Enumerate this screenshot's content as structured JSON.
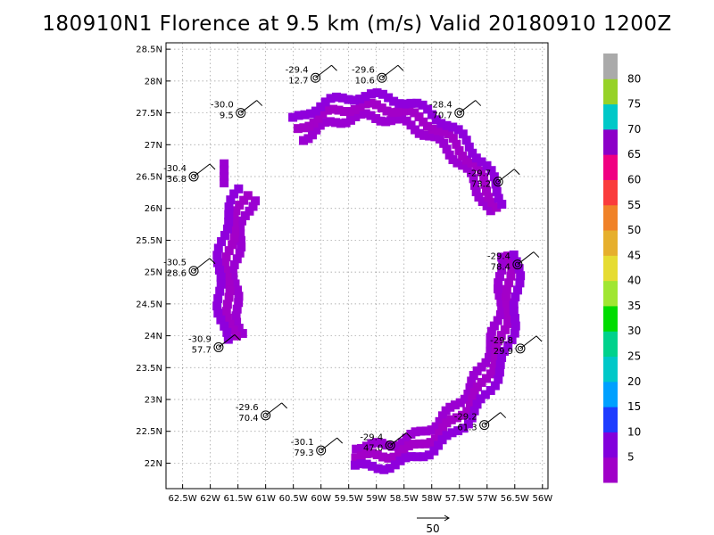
{
  "chart_data": {
    "type": "scatter",
    "title": "180910N1 Florence at 9.5 km (m/s) Valid 20180910 1200Z",
    "x_ticks": [
      "62.5W",
      "62W",
      "61.5W",
      "61W",
      "60.5W",
      "60W",
      "59.5W",
      "59W",
      "58.5W",
      "58W",
      "57.5W",
      "57W",
      "56.5W",
      "56W"
    ],
    "y_ticks": [
      "22N",
      "22.5N",
      "23N",
      "23.5N",
      "24N",
      "24.5N",
      "25N",
      "25.5N",
      "26N",
      "26.5N",
      "27N",
      "27.5N",
      "28N",
      "28.5N"
    ],
    "xlim": [
      -62.8,
      -55.9
    ],
    "ylim": [
      21.6,
      28.6
    ],
    "grid": true,
    "colorbar": {
      "labels": [
        "5",
        "10",
        "15",
        "20",
        "25",
        "30",
        "35",
        "40",
        "45",
        "50",
        "55",
        "60",
        "65",
        "70",
        "75",
        "80"
      ],
      "colors": [
        "#a000c8",
        "#8200dc",
        "#1e3cff",
        "#00a0ff",
        "#00c8c8",
        "#00d28c",
        "#00dc00",
        "#a0e632",
        "#e6dc32",
        "#e6af2d",
        "#f08228",
        "#fa3c3c",
        "#f00082",
        "#8c00c8",
        "#00c8c8",
        "#96d228",
        "#aaaaaa"
      ]
    },
    "dropsondes": [
      {
        "lon": -60.1,
        "lat": 28.05,
        "t": "-29.4",
        "w": "12.7"
      },
      {
        "lon": -58.9,
        "lat": 28.05,
        "t": "-29.6",
        "w": "10.6"
      },
      {
        "lon": -61.45,
        "lat": 27.5,
        "t": "-30.0",
        "w": "9.5"
      },
      {
        "lon": -57.5,
        "lat": 27.5,
        "t": "-28.4",
        "w": "70.7"
      },
      {
        "lon": -62.3,
        "lat": 26.5,
        "t": "-30.4",
        "w": "36.8"
      },
      {
        "lon": -56.8,
        "lat": 26.42,
        "t": "-29.7",
        "w": "73.2"
      },
      {
        "lon": -62.3,
        "lat": 25.02,
        "t": "-30.5",
        "w": "28.6"
      },
      {
        "lon": -56.45,
        "lat": 25.12,
        "t": "-29.4",
        "w": "78.4"
      },
      {
        "lon": -61.85,
        "lat": 23.82,
        "t": "-30.9",
        "w": "57.7"
      },
      {
        "lon": -56.4,
        "lat": 23.8,
        "t": "-29.8",
        "w": "29.9"
      },
      {
        "lon": -61.0,
        "lat": 22.75,
        "t": "-29.6",
        "w": "70.4"
      },
      {
        "lon": -57.05,
        "lat": 22.6,
        "t": "-29.2",
        "w": "61.3"
      },
      {
        "lon": -58.75,
        "lat": 22.28,
        "t": "-29.4",
        "w": "47.0"
      },
      {
        "lon": -60.0,
        "lat": 22.2,
        "t": "-30.1",
        "w": "79.3"
      }
    ],
    "reference_vector": "50"
  }
}
